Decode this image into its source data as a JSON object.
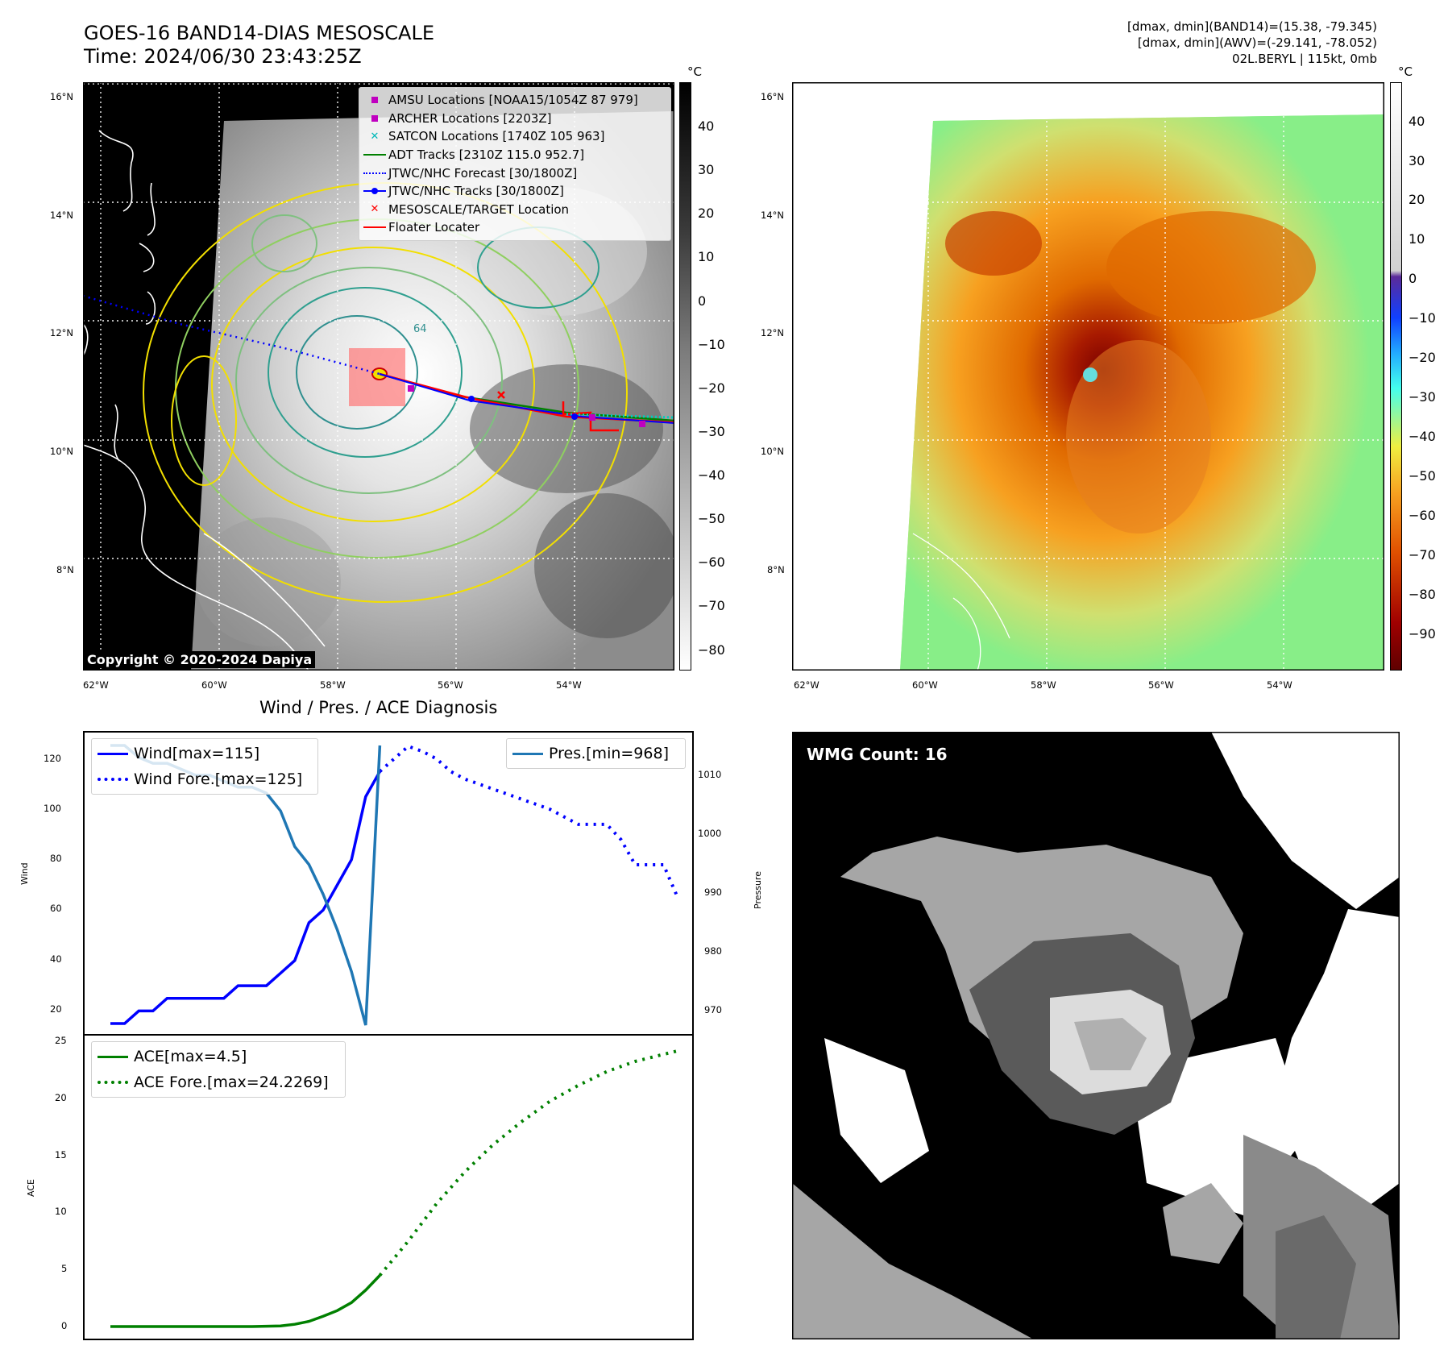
{
  "header": {
    "title_line1": "GOES-16 BAND14-DIAS MESOSCALE",
    "title_line2": "Time: 2024/06/30 23:43:25Z",
    "info_line1": "[dmax, dmin](BAND14)=(15.38, -79.345)",
    "info_line2": "[dmax, dmin](AWV)=(-29.141, -78.052)",
    "info_line3": "02L.BERYL | 115kt, 0mb"
  },
  "map_axes": {
    "lat_ticks": [
      "16°N",
      "14°N",
      "12°N",
      "10°N",
      "8°N"
    ],
    "lon_ticks": [
      "62°W",
      "60°W",
      "58°W",
      "56°W",
      "54°W"
    ],
    "contour_label": "64"
  },
  "ir_panel": {
    "copyright": "Copyright © 2020-2024 Dapiya",
    "colorbar_unit": "°C",
    "colorbar_ticks": [
      "40",
      "30",
      "20",
      "10",
      "0",
      "−10",
      "−20",
      "−30",
      "−40",
      "−50",
      "−60",
      "−70",
      "−80"
    ],
    "legend": [
      {
        "label": "AMSU Locations [NOAA15/1054Z 87 979]",
        "symbol": "square",
        "color": "#c000c0"
      },
      {
        "label": "ARCHER Locations [2203Z]",
        "symbol": "square",
        "color": "#c000c0"
      },
      {
        "label": "SATCON Locations [1740Z 105 963]",
        "symbol": "x",
        "color": "#00b8b8"
      },
      {
        "label": "ADT Tracks [2310Z 115.0 952.7]",
        "symbol": "line",
        "color": "#008000"
      },
      {
        "label": "JTWC/NHC Forecast [30/1800Z]",
        "symbol": "dotted",
        "color": "#0000ff"
      },
      {
        "label": "JTWC/NHC Tracks [30/1800Z]",
        "symbol": "line-dot",
        "color": "#0000ff"
      },
      {
        "label": "MESOSCALE/TARGET Location",
        "symbol": "x",
        "color": "#ff0000"
      },
      {
        "label": "Floater Locater",
        "symbol": "line",
        "color": "#ff0000"
      }
    ]
  },
  "awv_panel": {
    "colorbar_unit": "°C",
    "colorbar_ticks": [
      "40",
      "30",
      "20",
      "10",
      "0",
      "−10",
      "−20",
      "−30",
      "−40",
      "−50",
      "−60",
      "−70",
      "−80",
      "−90"
    ]
  },
  "diagnosis": {
    "title": "Wind / Pres. / ACE Diagnosis",
    "wind_ylabel": "Wind",
    "pressure_ylabel": "Pressure",
    "ace_ylabel": "ACE",
    "wind_ticks": [
      "120",
      "100",
      "80",
      "60",
      "40",
      "20"
    ],
    "pressure_ticks": [
      "1010",
      "1000",
      "990",
      "980",
      "970"
    ],
    "ace_ticks": [
      "25",
      "20",
      "15",
      "10",
      "5",
      "0"
    ],
    "legend_wind": [
      "Wind[max=115]",
      "Wind Fore.[max=125]"
    ],
    "legend_pres": [
      "Pres.[min=968]"
    ],
    "legend_ace": [
      "ACE[max=4.5]",
      "ACE Fore.[max=24.2269]"
    ]
  },
  "wmg_panel": {
    "label": "WMG Count: 16"
  },
  "chart_data": [
    {
      "type": "line",
      "id": "wind",
      "x": [
        0,
        1,
        2,
        3,
        4,
        5,
        6,
        7,
        8,
        9,
        10,
        11,
        12,
        13,
        14,
        15,
        16,
        17,
        18,
        19
      ],
      "series": [
        {
          "name": "Wind[max=115]",
          "color": "#0000ff",
          "style": "solid",
          "values": [
            15,
            15,
            20,
            20,
            25,
            25,
            25,
            25,
            25,
            30,
            30,
            30,
            35,
            40,
            55,
            60,
            70,
            80,
            105,
            115
          ]
        }
      ],
      "ylim": [
        12,
        130
      ]
    },
    {
      "type": "line",
      "id": "wind_forecast",
      "series": [
        {
          "name": "Wind Fore.[max=125]",
          "color": "#0000ff",
          "style": "dotted",
          "x": [
            19,
            20,
            21,
            22,
            23,
            24,
            25,
            26,
            27,
            28,
            29,
            30,
            31,
            32,
            33,
            34,
            35,
            36,
            37,
            38,
            39,
            40
          ],
          "values": [
            115,
            120,
            125,
            123,
            120,
            115,
            112,
            110,
            108,
            106,
            104,
            102,
            100,
            97,
            94,
            94,
            94,
            88,
            78,
            78,
            78,
            65
          ]
        }
      ]
    },
    {
      "type": "line",
      "id": "pressure",
      "series": [
        {
          "name": "Pres.[min=968]",
          "color": "#1f77b4",
          "style": "solid",
          "x": [
            0,
            1,
            2,
            3,
            4,
            5,
            6,
            7,
            8,
            9,
            10,
            11,
            12,
            13,
            14,
            15,
            16,
            17,
            18,
            19
          ],
          "values": [
            1015,
            1015,
            1013,
            1012,
            1012,
            1011,
            1010,
            1010,
            1009,
            1008,
            1008,
            1007,
            1004,
            998,
            995,
            990,
            984,
            977,
            968,
            1015
          ]
        }
      ],
      "ylim": [
        966,
        1016
      ]
    },
    {
      "type": "line",
      "id": "ace",
      "series": [
        {
          "name": "ACE[max=4.5]",
          "color": "#008000",
          "style": "solid",
          "x": [
            0,
            2,
            4,
            6,
            8,
            10,
            12,
            13,
            14,
            15,
            16,
            17,
            18,
            19
          ],
          "values": [
            0,
            0,
            0,
            0,
            0,
            0,
            0.05,
            0.2,
            0.45,
            0.9,
            1.4,
            2.1,
            3.2,
            4.5
          ]
        },
        {
          "name": "ACE Fore.[max=24.2269]",
          "color": "#008000",
          "style": "dotted",
          "x": [
            19,
            21,
            23,
            25,
            27,
            29,
            31,
            33,
            35,
            37,
            40
          ],
          "values": [
            4.5,
            7.5,
            10.8,
            13.6,
            16.0,
            18.0,
            19.8,
            21.2,
            22.4,
            23.3,
            24.2269
          ]
        }
      ],
      "ylim": [
        -1,
        25
      ]
    }
  ]
}
